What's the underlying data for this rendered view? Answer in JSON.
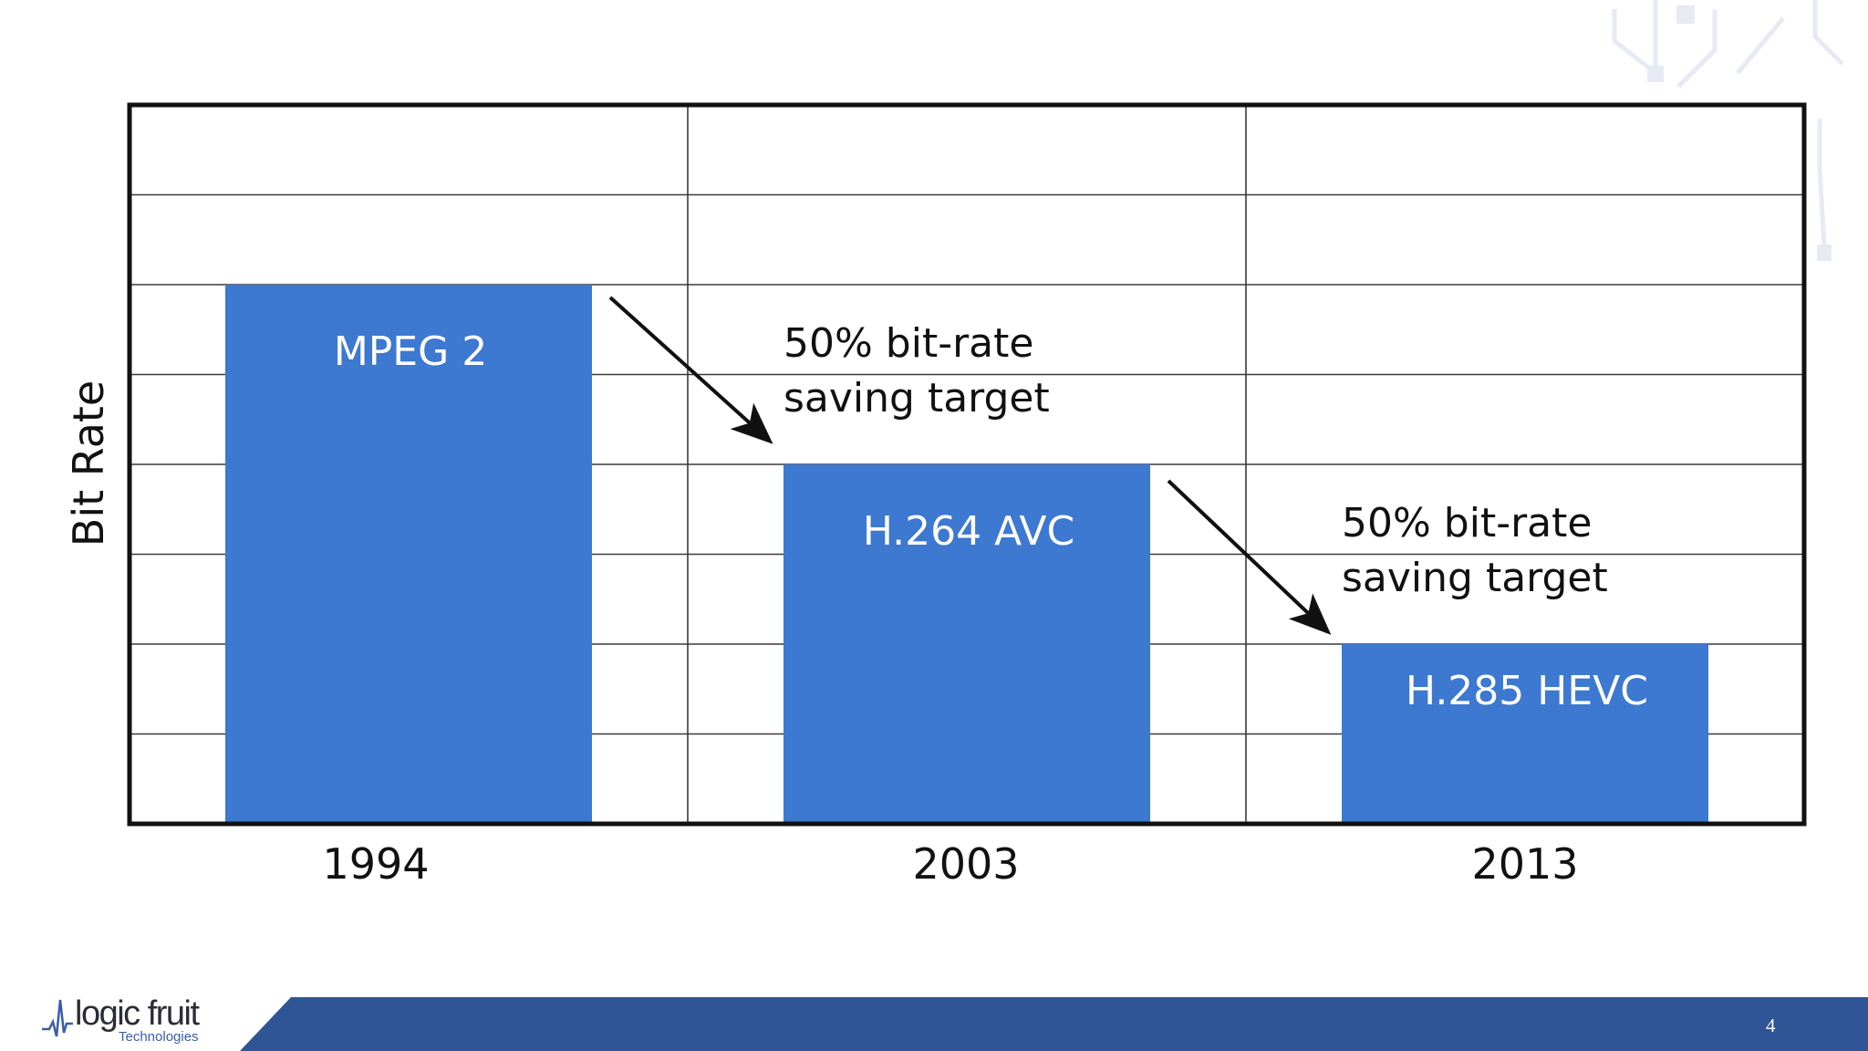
{
  "chart_data": {
    "type": "bar",
    "ylabel": "Bit Rate",
    "categories": [
      "1994",
      "2003",
      "2013"
    ],
    "values": [
      6,
      4,
      2
    ],
    "bar_labels": [
      "MPEG 2",
      "H.264 AVC",
      "H.285 HEVC"
    ],
    "ylim": [
      0,
      8
    ],
    "grid": true,
    "bar_color": "#3d78d1",
    "annotations": [
      {
        "line1": "50% bit-rate",
        "line2": "saving target"
      },
      {
        "line1": "50% bit-rate",
        "line2": "saving target"
      }
    ]
  },
  "footer": {
    "company": "logic fruit",
    "company_sub": "Technologies",
    "page_number": "4",
    "bar_color": "#2f5597"
  }
}
